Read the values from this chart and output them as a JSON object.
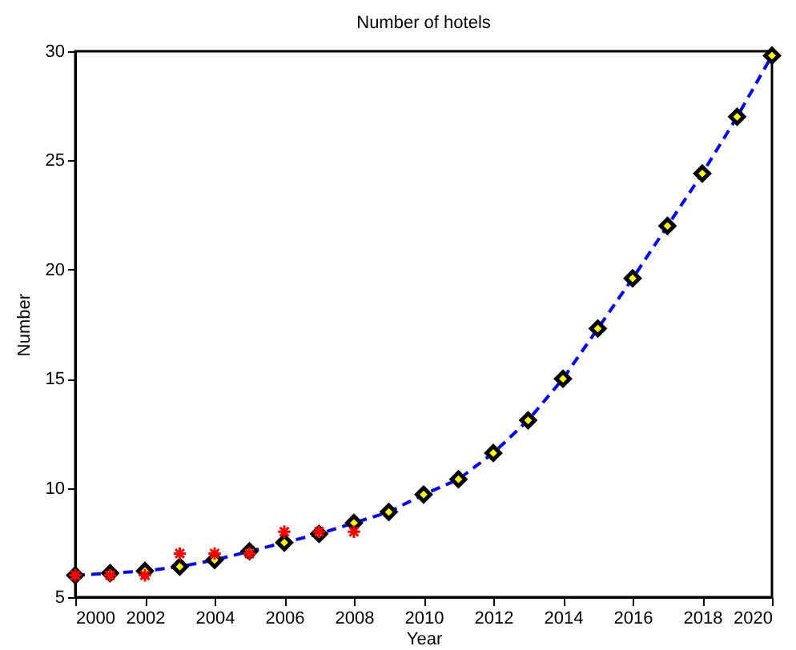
{
  "chart_data": {
    "type": "line",
    "title": "Number of hotels",
    "xlabel": "Year",
    "ylabel": "Number",
    "x": [
      2000,
      2001,
      2002,
      2003,
      2004,
      2005,
      2006,
      2007,
      2008,
      2009,
      2010,
      2011,
      2012,
      2013,
      2014,
      2015,
      2016,
      2017,
      2018,
      2019,
      2020
    ],
    "series": [
      {
        "type": "line",
        "color": "#0000ff",
        "line_style": "dashed",
        "marker": "none",
        "values": [
          6.0,
          6.1,
          6.2,
          6.4,
          6.7,
          7.1,
          7.5,
          7.9,
          8.4,
          8.9,
          9.7,
          10.4,
          11.6,
          13.1,
          15.0,
          17.3,
          19.6,
          22.0,
          24.4,
          27.0,
          29.8
        ]
      },
      {
        "type": "scatter",
        "color": "#ffff00",
        "marker": "diamond",
        "values": [
          6.0,
          6.1,
          6.2,
          6.4,
          6.7,
          7.1,
          7.5,
          7.9,
          8.4,
          8.9,
          9.7,
          10.4,
          11.6,
          13.1,
          15.0,
          17.3,
          19.6,
          22.0,
          24.4,
          27.0,
          29.8
        ]
      },
      {
        "type": "scatter",
        "color": "#ff0000",
        "marker": "cross",
        "x": [
          2000,
          2001,
          2002,
          2003,
          2004,
          2005,
          2006,
          2007,
          2008
        ],
        "values": [
          6,
          6,
          6,
          7,
          7,
          7,
          8,
          8,
          8
        ]
      }
    ],
    "xlim": [
      2000,
      2020
    ],
    "xticks": [
      2000,
      2002,
      2004,
      2006,
      2008,
      2010,
      2012,
      2014,
      2016,
      2018,
      2020
    ],
    "ylim": [
      5,
      30
    ],
    "yticks": [
      5,
      10,
      15,
      20,
      25,
      30
    ],
    "grid": false
  }
}
